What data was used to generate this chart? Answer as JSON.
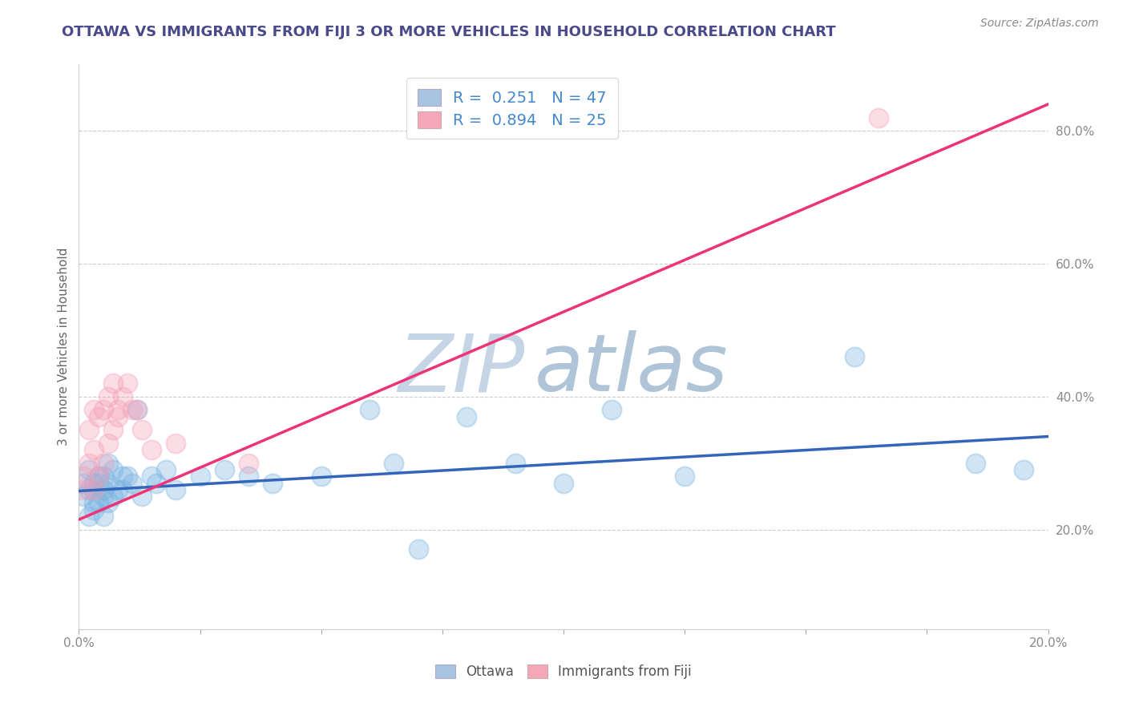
{
  "title": "OTTAWA VS IMMIGRANTS FROM FIJI 3 OR MORE VEHICLES IN HOUSEHOLD CORRELATION CHART",
  "source": "Source: ZipAtlas.com",
  "ylabel": "3 or more Vehicles in Household",
  "xlim": [
    0.0,
    0.2
  ],
  "ylim": [
    0.05,
    0.9
  ],
  "xtick_positions": [
    0.0,
    0.025,
    0.05,
    0.075,
    0.1,
    0.125,
    0.15,
    0.175,
    0.2
  ],
  "xtick_labels": [
    "0.0%",
    "",
    "",
    "",
    "",
    "",
    "",
    "",
    "20.0%"
  ],
  "yticks_right": [
    0.2,
    0.4,
    0.6,
    0.8
  ],
  "ytick_labels_right": [
    "20.0%",
    "40.0%",
    "60.0%",
    "80.0%"
  ],
  "legend_color1": "#a8c4e0",
  "legend_color2": "#f4a7b9",
  "title_color": "#4a4a8a",
  "r_value_color": "#4488cc",
  "blue_dot_color": "#7ab3e0",
  "pink_dot_color": "#f4a0b8",
  "blue_line_color": "#3366bb",
  "pink_line_color": "#ee3377",
  "background_color": "#ffffff",
  "grid_color": "#cccccc",
  "ottawa_scatter_x": [
    0.001,
    0.001,
    0.002,
    0.002,
    0.002,
    0.003,
    0.003,
    0.003,
    0.003,
    0.004,
    0.004,
    0.004,
    0.005,
    0.005,
    0.005,
    0.005,
    0.006,
    0.006,
    0.006,
    0.007,
    0.007,
    0.008,
    0.009,
    0.009,
    0.01,
    0.011,
    0.012,
    0.013,
    0.015,
    0.016,
    0.018,
    0.02,
    0.025,
    0.03,
    0.035,
    0.04,
    0.05,
    0.06,
    0.065,
    0.07,
    0.08,
    0.09,
    0.1,
    0.11,
    0.125,
    0.16,
    0.185,
    0.195
  ],
  "ottawa_scatter_y": [
    0.25,
    0.27,
    0.22,
    0.26,
    0.29,
    0.24,
    0.27,
    0.23,
    0.26,
    0.24,
    0.27,
    0.28,
    0.25,
    0.28,
    0.22,
    0.26,
    0.24,
    0.27,
    0.3,
    0.25,
    0.29,
    0.26,
    0.28,
    0.26,
    0.28,
    0.27,
    0.38,
    0.25,
    0.28,
    0.27,
    0.29,
    0.26,
    0.28,
    0.29,
    0.28,
    0.27,
    0.28,
    0.38,
    0.3,
    0.17,
    0.37,
    0.3,
    0.27,
    0.38,
    0.28,
    0.46,
    0.3,
    0.29
  ],
  "fiji_scatter_x": [
    0.001,
    0.001,
    0.002,
    0.002,
    0.003,
    0.003,
    0.003,
    0.004,
    0.004,
    0.005,
    0.005,
    0.006,
    0.006,
    0.007,
    0.007,
    0.008,
    0.008,
    0.009,
    0.01,
    0.011,
    0.012,
    0.013,
    0.015,
    0.02,
    0.035,
    0.165
  ],
  "fiji_scatter_y": [
    0.26,
    0.28,
    0.3,
    0.35,
    0.26,
    0.32,
    0.38,
    0.28,
    0.37,
    0.3,
    0.38,
    0.33,
    0.4,
    0.35,
    0.42,
    0.37,
    0.38,
    0.4,
    0.42,
    0.38,
    0.38,
    0.35,
    0.32,
    0.33,
    0.3,
    0.82
  ],
  "blue_line_x": [
    0.0,
    0.2
  ],
  "blue_line_y": [
    0.258,
    0.34
  ],
  "pink_line_x": [
    0.0,
    0.2
  ],
  "pink_line_y": [
    0.215,
    0.84
  ],
  "legend_fontsize": 14,
  "title_fontsize": 13,
  "axis_label_fontsize": 11,
  "tick_fontsize": 11,
  "dot_size": 300,
  "dot_alpha": 0.35,
  "dot_linewidth": 1.5
}
